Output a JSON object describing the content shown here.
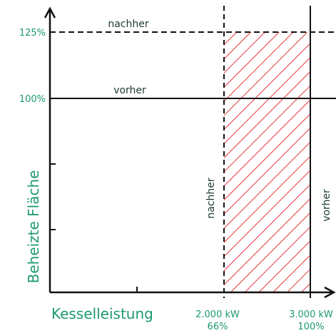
{
  "colors": {
    "accent_green": "#1d9a6c",
    "label_dark": "#1a3a2e",
    "axis": "#111111",
    "hatch": "#e8323c"
  },
  "labels": {
    "y_axis": "Beheizte Fläche",
    "x_axis": "Kesselleistung",
    "line_125": "nachher",
    "line_100": "vorher",
    "vline_2000": "nachher",
    "vline_3000": "vorher"
  },
  "ticks": {
    "y_125": "125%",
    "y_100": "100%",
    "x_2000_kw": "2.000 kW",
    "x_2000_pct": "66%",
    "x_3000_kw": "3.000 kW",
    "x_3000_pct": "100%"
  }
}
